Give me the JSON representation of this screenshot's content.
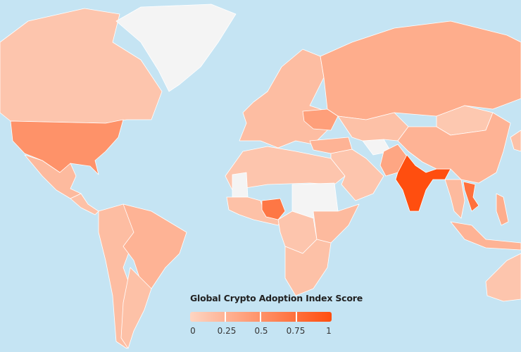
{
  "legend": {
    "title": "Global Crypto Adoption Index Score",
    "ticks": [
      "0",
      "0.25",
      "0.5",
      "0.75",
      "1"
    ],
    "color_min": "#fdd5c2",
    "color_max": "#ff4e0f"
  },
  "colors": {
    "ocean": "#c5e4f3",
    "no_data": "#f4f4f4"
  },
  "scores": {
    "canada": 0.12,
    "usa": 0.5,
    "mexico": 0.2,
    "central-america": 0.15,
    "south-america": 0.18,
    "brazil": 0.25,
    "argentina": 0.15,
    "europe": 0.18,
    "ukraine": 0.4,
    "russia": 0.3,
    "north-africa": 0.12,
    "west-africa": 0.15,
    "nigeria": 0.7,
    "central-africa": 0.12,
    "east-africa": 0.2,
    "southern-africa": 0.15,
    "middle-east": 0.12,
    "turkey": 0.25,
    "central-asia": 0.15,
    "pakistan": 0.35,
    "india": 1.0,
    "china": 0.25,
    "mongolia": 0.1,
    "southeast-asia": 0.2,
    "vietnam": 0.75,
    "indonesia": 0.25,
    "philippines": 0.3,
    "japan": 0.15,
    "australia": 0.12,
    "greenland": null,
    "sudan-chad": null,
    "iran": null,
    "western-sahara-mali": null
  }
}
